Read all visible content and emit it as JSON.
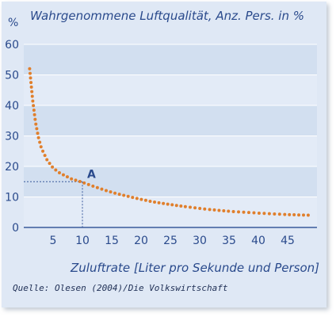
{
  "chart_data": {
    "type": "scatter",
    "title": "Wahrgenommene Luftqualität, Anz. Pers. in %",
    "ylabel_unit": "%",
    "xlabel": "Zuluftrate [Liter pro Sekunde und Person]",
    "source": "Quelle: Olesen (2004)/Die Volkswirtschaft",
    "xlim": [
      0,
      50
    ],
    "ylim": [
      0,
      60
    ],
    "x_ticks": [
      5,
      10,
      15,
      20,
      25,
      30,
      35,
      40,
      45
    ],
    "y_ticks": [
      0,
      10,
      20,
      30,
      40,
      50,
      60
    ],
    "grid": "horizontal",
    "annotation": {
      "label": "A",
      "x": 10,
      "y": 15
    },
    "series": [
      {
        "x": [
          1,
          1.5,
          2,
          2.5,
          3,
          4,
          5,
          6,
          7,
          8,
          9,
          10,
          12,
          14,
          16,
          18,
          20,
          22,
          25,
          28,
          31,
          35,
          40,
          45,
          49
        ],
        "y": [
          52,
          42,
          34.5,
          29.5,
          26,
          22,
          19.5,
          18,
          17,
          16,
          15.4,
          14.8,
          13.4,
          12.1,
          11,
          10.1,
          9.2,
          8.4,
          7.5,
          6.7,
          6,
          5.3,
          4.7,
          4.2,
          4
        ]
      }
    ]
  },
  "colors": {
    "background": "#dfe8f5",
    "band_dark": "#d2dff0",
    "band_light": "#e3ebf7",
    "text_blue": "#2a4a8c",
    "axis": "#3a5a9c",
    "curve": "#e07f2c"
  }
}
